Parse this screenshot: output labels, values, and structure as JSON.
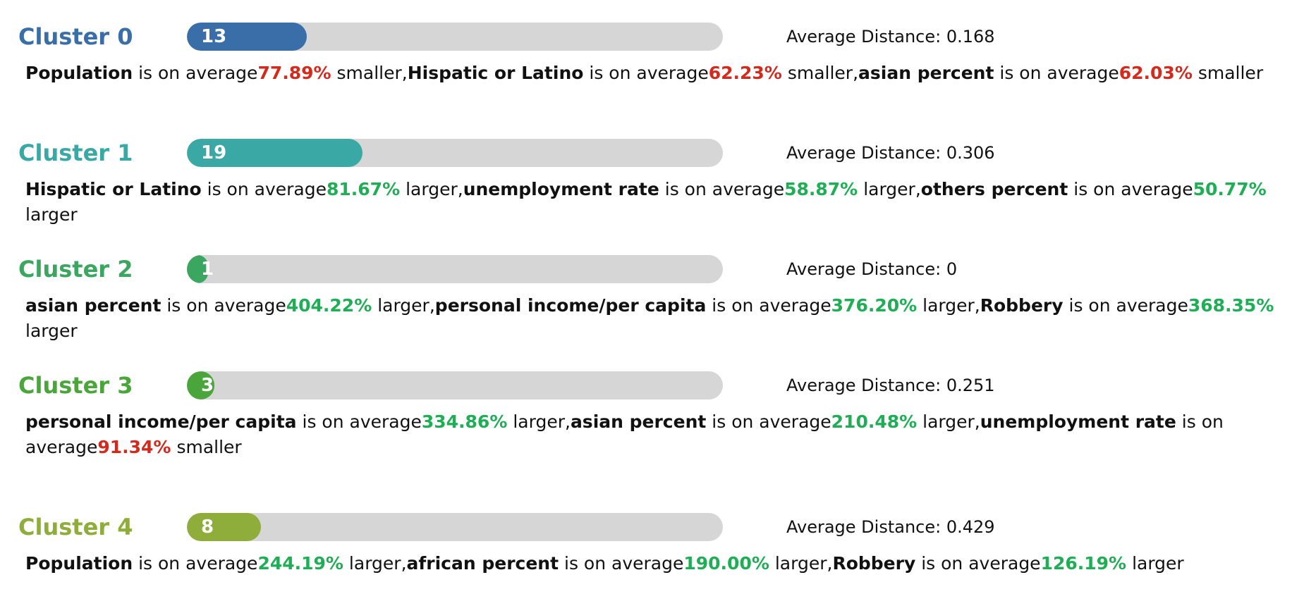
{
  "separator": ",",
  "connector": "is on average",
  "distance_label": "Average Distance:",
  "clusters": [
    {
      "name": "Cluster 0",
      "color": "#3a6ea8",
      "count": 13,
      "distance": 0.168,
      "items": [
        {
          "feature": "Population",
          "value": "77.89%",
          "direction": "smaller"
        },
        {
          "feature": "Hispatic or Latino",
          "value": "62.23%",
          "direction": "smaller"
        },
        {
          "feature": "asian percent",
          "value": "62.03%",
          "direction": "smaller"
        }
      ]
    },
    {
      "name": "Cluster 1",
      "color": "#3aa9a6",
      "count": 19,
      "distance": 0.306,
      "items": [
        {
          "feature": "Hispatic or Latino",
          "value": "81.67%",
          "direction": "larger"
        },
        {
          "feature": "unemployment rate",
          "value": "58.87%",
          "direction": "larger"
        },
        {
          "feature": "others percent",
          "value": "50.77%",
          "direction": "larger"
        }
      ]
    },
    {
      "name": "Cluster 2",
      "color": "#3aa65f",
      "count": 1,
      "distance": 0,
      "items": [
        {
          "feature": "asian percent",
          "value": "404.22%",
          "direction": "larger"
        },
        {
          "feature": "personal income/per capita",
          "value": "376.20%",
          "direction": "larger"
        },
        {
          "feature": "Robbery",
          "value": "368.35%",
          "direction": "larger"
        }
      ]
    },
    {
      "name": "Cluster 3",
      "color": "#4aa63a",
      "count": 3,
      "distance": 0.251,
      "items": [
        {
          "feature": "personal income/per capita",
          "value": "334.86%",
          "direction": "larger"
        },
        {
          "feature": "asian percent",
          "value": "210.48%",
          "direction": "larger"
        },
        {
          "feature": "unemployment rate",
          "value": "91.34%",
          "direction": "smaller"
        }
      ]
    },
    {
      "name": "Cluster 4",
      "color": "#8fad3a",
      "count": 8,
      "distance": 0.429,
      "items": [
        {
          "feature": "Population",
          "value": "244.19%",
          "direction": "larger"
        },
        {
          "feature": "african percent",
          "value": "190.00%",
          "direction": "larger"
        },
        {
          "feature": "Robbery",
          "value": "126.19%",
          "direction": "larger"
        }
      ]
    }
  ]
}
